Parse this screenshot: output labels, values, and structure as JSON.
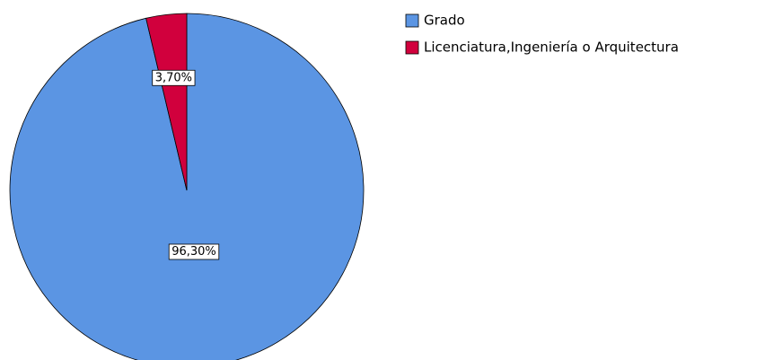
{
  "chart_data": {
    "type": "pie",
    "categories": [
      "Grado",
      "Licenciatura,Ingeniería o Arquitectura"
    ],
    "values": [
      96.3,
      3.7
    ],
    "value_labels": [
      "96,30%",
      "3,70%"
    ],
    "colors": [
      "#5b95e3",
      "#d1003d"
    ],
    "legend": "top-right"
  }
}
